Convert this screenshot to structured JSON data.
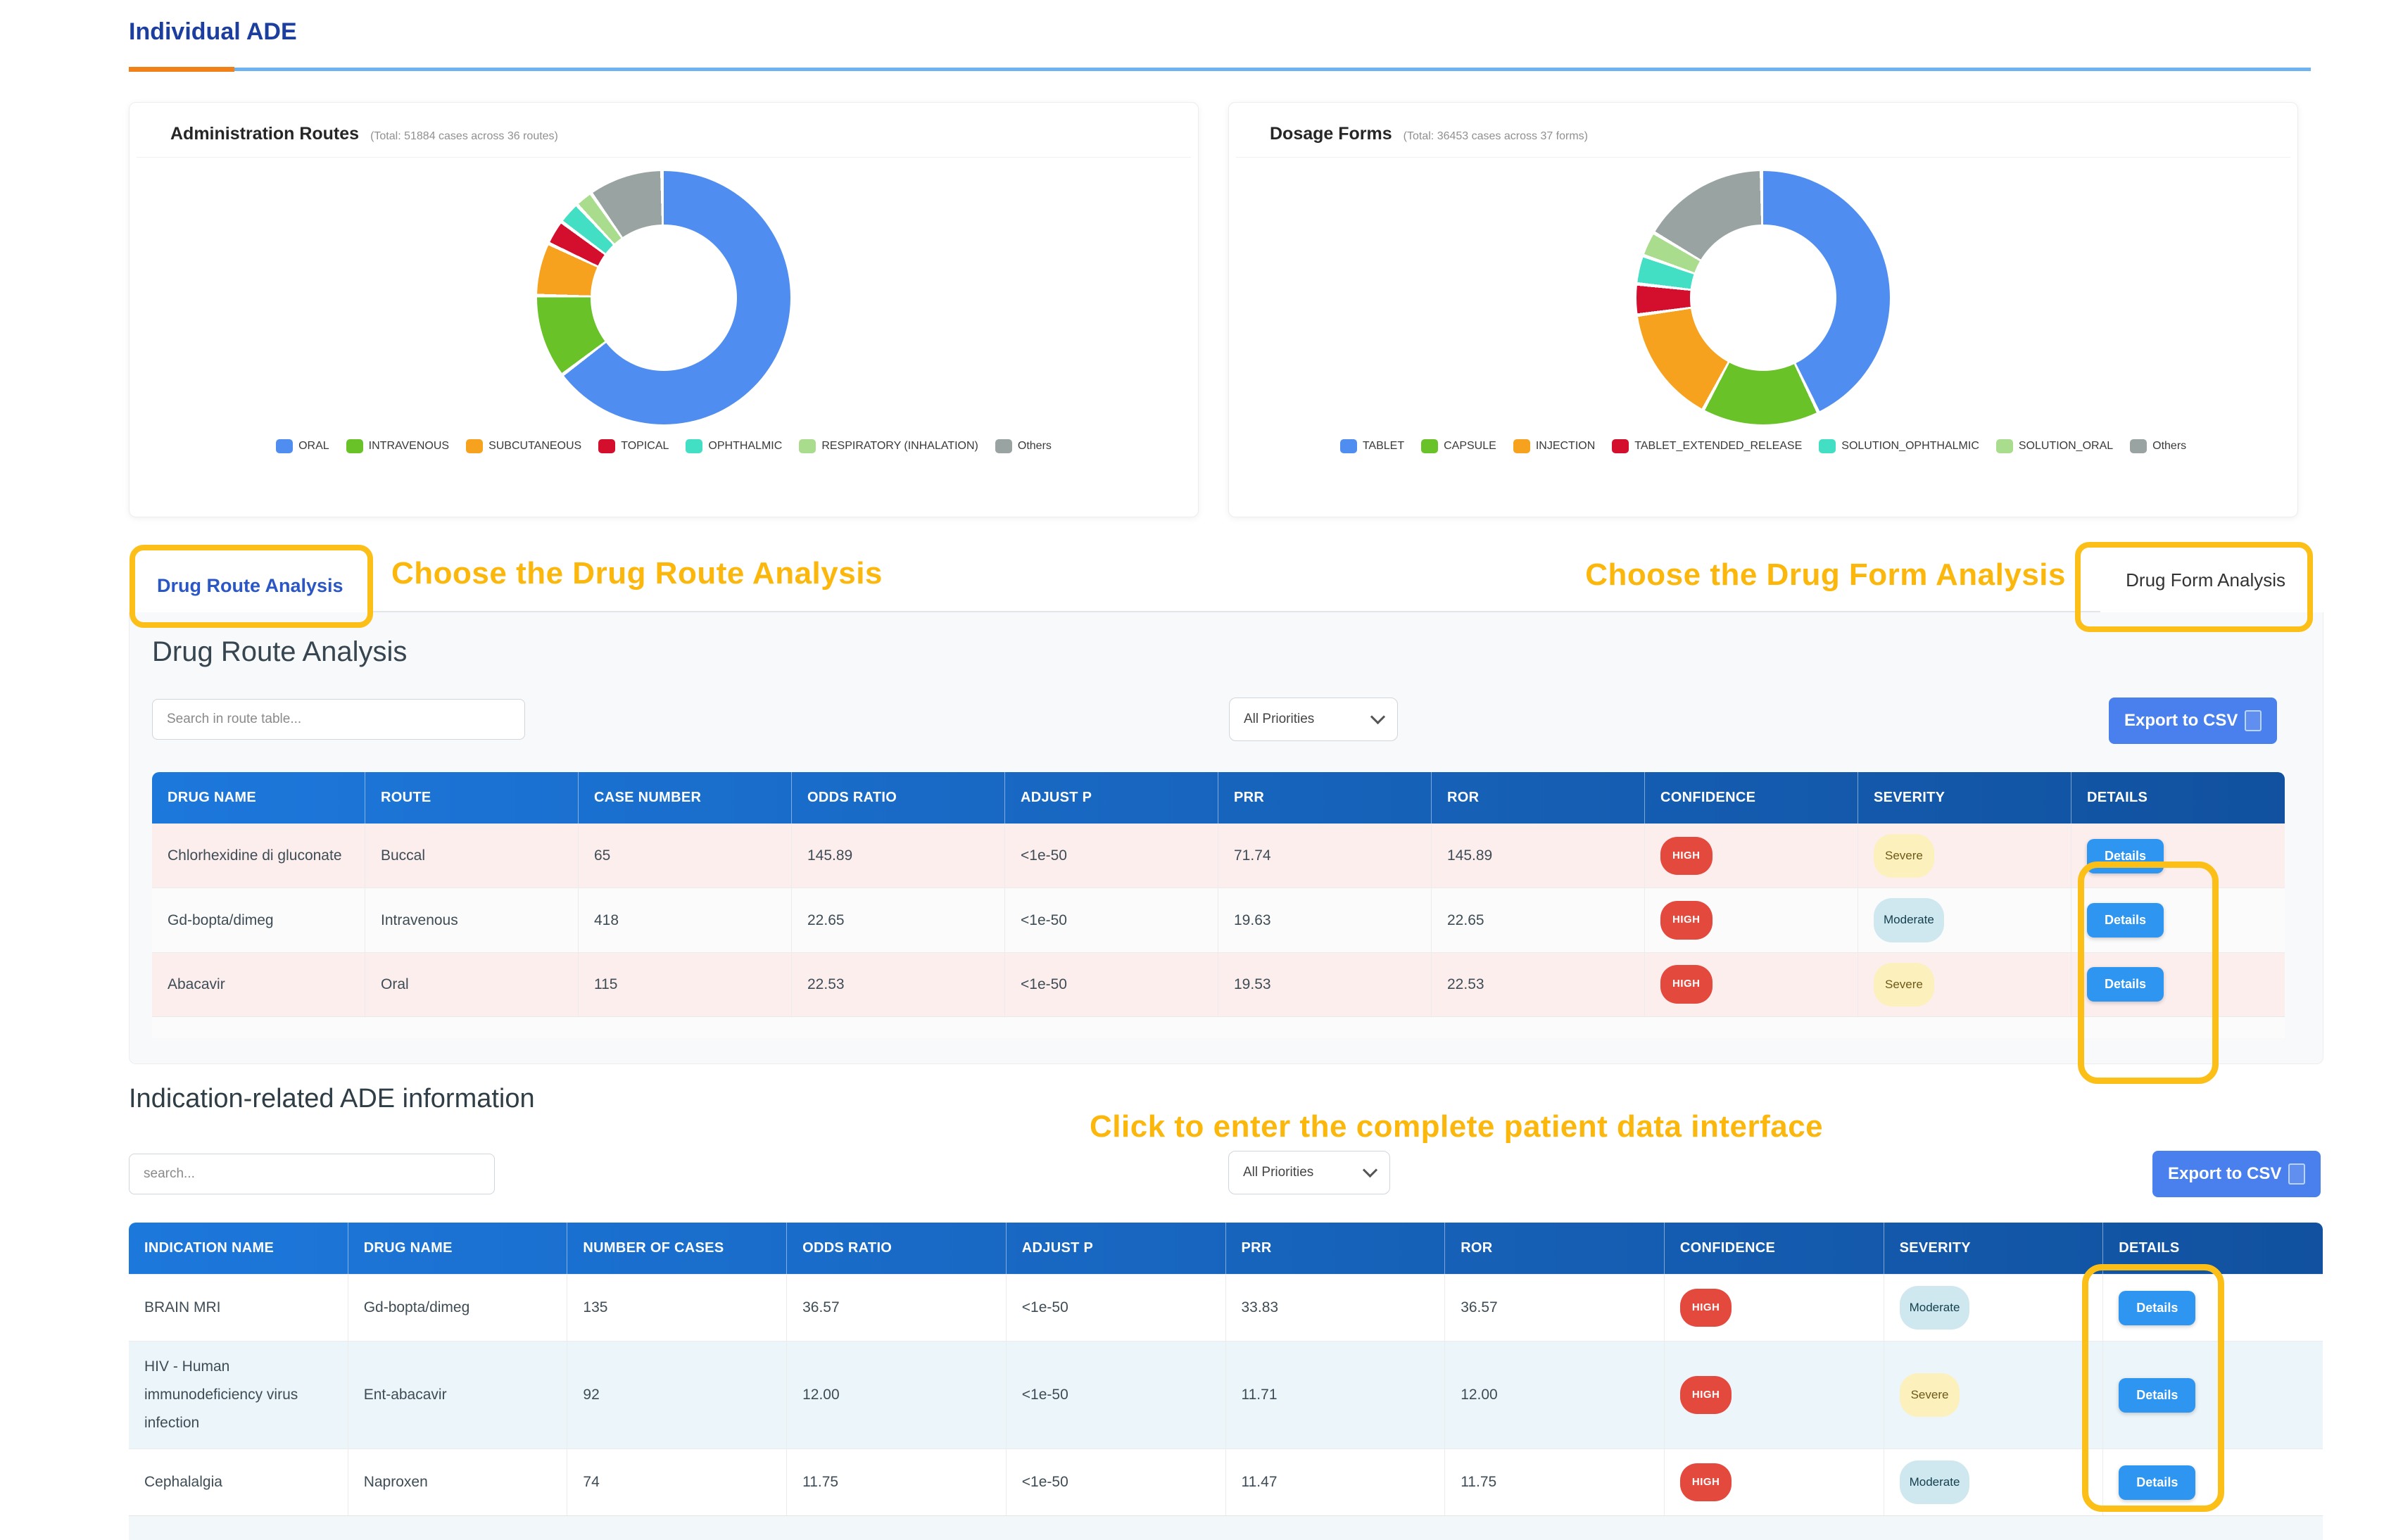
{
  "page": {
    "tab_title": "Individual ADE"
  },
  "chart_data": [
    {
      "type": "pie",
      "title": "Administration Routes",
      "subtitle": "(Total: 51884 cases across 36 routes)",
      "legend_position": "bottom",
      "series": [
        {
          "label": "ORAL",
          "color": "#4f8df0",
          "percent": 66.5
        },
        {
          "label": "INTRAVENOUS",
          "color": "#69c228",
          "percent": 10.5
        },
        {
          "label": "SUBCUTANEOUS",
          "color": "#f6a21e",
          "percent": 6.5
        },
        {
          "label": "TOPICAL",
          "color": "#d40f2e",
          "percent": 2.8
        },
        {
          "label": "OPHTHALMIC",
          "color": "#43dfc4",
          "percent": 2.5
        },
        {
          "label": "RESPIRATORY (INHALATION)",
          "color": "#a9dc8c",
          "percent": 1.9
        },
        {
          "label": "Others",
          "color": "#99a3a2",
          "percent": 9.3
        }
      ]
    },
    {
      "type": "pie",
      "title": "Dosage Forms",
      "subtitle": "(Total: 36453 cases across 37 forms)",
      "legend_position": "bottom",
      "series": [
        {
          "label": "TABLET",
          "color": "#4f8df0",
          "percent": 44.0
        },
        {
          "label": "CAPSULE",
          "color": "#69c228",
          "percent": 15.0
        },
        {
          "label": "INJECTION",
          "color": "#f6a21e",
          "percent": 15.0
        },
        {
          "label": "TABLET_EXTENDED_RELEASE",
          "color": "#d40f2e",
          "percent": 3.6
        },
        {
          "label": "SOLUTION_OPHTHALMIC",
          "color": "#43dfc4",
          "percent": 3.3
        },
        {
          "label": "SOLUTION_ORAL",
          "color": "#a9dc8c",
          "percent": 2.8
        },
        {
          "label": "Others",
          "color": "#99a3a2",
          "percent": 16.3
        }
      ]
    }
  ],
  "tabs": {
    "route_label": "Drug Route Analysis",
    "form_label": "Drug Form Analysis"
  },
  "annotations": {
    "route": "Choose the Drug Route Analysis",
    "form": "Choose the Drug Form Analysis",
    "patient": "Click to enter the complete patient data interface",
    "highlight_color": "#fcbf17"
  },
  "route_section": {
    "title": "Drug Route Analysis",
    "search_placeholder": "Search in route table...",
    "priority_filter": "All Priorities",
    "export_label": "Export to CSV",
    "table": {
      "columns": [
        "DRUG NAME",
        "ROUTE",
        "CASE NUMBER",
        "ODDS RATIO",
        "ADJUST P",
        "PRR",
        "ROR",
        "CONFIDENCE",
        "SEVERITY",
        "DETAILS"
      ],
      "col_types": [
        "text",
        "text",
        "text",
        "text",
        "text",
        "text",
        "text",
        "confidence",
        "severity",
        "details"
      ],
      "rows": [
        [
          "Chlorhexidine di gluconate",
          "Buccal",
          "65",
          "145.89",
          "<1e-50",
          "71.74",
          "145.89",
          "HIGH",
          "Severe",
          "Details"
        ],
        [
          "Gd-bopta/dimeg",
          "Intravenous",
          "418",
          "22.65",
          "<1e-50",
          "19.63",
          "22.65",
          "HIGH",
          "Moderate",
          "Details"
        ],
        [
          "Abacavir",
          "Oral",
          "115",
          "22.53",
          "<1e-50",
          "19.53",
          "22.53",
          "HIGH",
          "Severe",
          "Details"
        ]
      ]
    }
  },
  "indication_section": {
    "title": "Indication-related ADE information",
    "search_placeholder": "search...",
    "priority_filter": "All Priorities",
    "export_label": "Export to CSV",
    "table": {
      "columns": [
        "INDICATION NAME",
        "DRUG NAME",
        "NUMBER OF CASES",
        "ODDS RATIO",
        "ADJUST P",
        "PRR",
        "ROR",
        "CONFIDENCE",
        "SEVERITY",
        "DETAILS"
      ],
      "col_types": [
        "text",
        "text",
        "text",
        "text",
        "text",
        "text",
        "text",
        "confidence",
        "severity",
        "details"
      ],
      "rows": [
        [
          "BRAIN MRI",
          "Gd-bopta/dimeg",
          "135",
          "36.57",
          "<1e-50",
          "33.83",
          "36.57",
          "HIGH",
          "Moderate",
          "Details"
        ],
        [
          "HIV - Human immunodeficiency virus infection",
          "Ent-abacavir",
          "92",
          "12.00",
          "<1e-50",
          "11.71",
          "12.00",
          "HIGH",
          "Severe",
          "Details"
        ],
        [
          "Cephalalgia",
          "Naproxen",
          "74",
          "11.75",
          "<1e-50",
          "11.47",
          "11.75",
          "HIGH",
          "Moderate",
          "Details"
        ]
      ]
    }
  }
}
